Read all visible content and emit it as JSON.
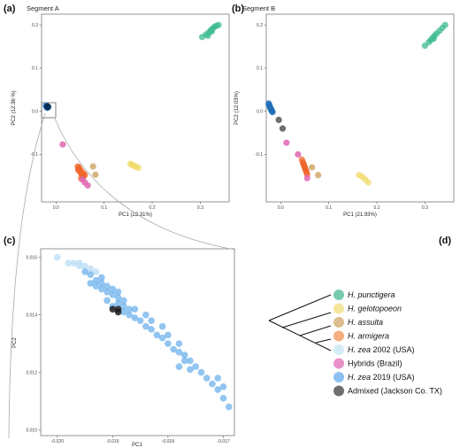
{
  "panels": {
    "a": {
      "letter": "(a)",
      "title": "Segment A",
      "xlabel": "PC1 (22.31%)",
      "ylabel": "PC2 (12.36 %)"
    },
    "b": {
      "letter": "(b)",
      "title": "Segment B",
      "xlabel": "PC1 (21.93%)",
      "ylabel": "PC2 (12.03%)"
    },
    "c": {
      "letter": "(c)",
      "xlabel": "PC1",
      "ylabel": "PC2"
    },
    "d": {
      "letter": "(d)"
    }
  },
  "legend": [
    {
      "italic": "H. punctigera",
      "plain": "",
      "color": "#5fc3a0"
    },
    {
      "italic": "H. gelotopoeon",
      "plain": "",
      "color": "#f2e38c"
    },
    {
      "italic": "H. assulta",
      "plain": "",
      "color": "#d6b27a"
    },
    {
      "italic": "H. armigera",
      "plain": "",
      "color": "#f6a06a"
    },
    {
      "italic": "H. zea",
      "plain": " 2002 (USA)",
      "color": "#cde8f7"
    },
    {
      "italic": "",
      "plain": "Hybrids (Brazil)",
      "color": "#e37fbf"
    },
    {
      "italic": "H. zea",
      "plain": " 2019 (USA)",
      "color": "#78b5ee"
    },
    {
      "italic": "",
      "plain": "Admixed (Jackson Co. TX)",
      "color": "#555555"
    }
  ],
  "chart_data": [
    {
      "panel": "a",
      "type": "scatter",
      "title": "Segment A",
      "xlabel": "PC1 (22.31%)",
      "ylabel": "PC2 (12.36 %)",
      "xlim": [
        -0.03,
        0.36
      ],
      "ylim": [
        -0.21,
        0.225
      ],
      "xticks": [
        0.0,
        0.1,
        0.2,
        0.3
      ],
      "xticklabels": [
        "0.0",
        "0.1",
        "0.2",
        "0.3"
      ],
      "yticks": [
        -0.1,
        0.0,
        0.1,
        0.2
      ],
      "yticklabels": [
        "-0.1",
        "0.0",
        "0.1",
        "0.2"
      ],
      "series": [
        {
          "name": "H. punctigera",
          "color": "#3dbb93",
          "alpha": 0.75,
          "points": [
            [
              0.304,
              0.172
            ],
            [
              0.312,
              0.178
            ],
            [
              0.318,
              0.183
            ],
            [
              0.322,
              0.188
            ],
            [
              0.326,
              0.192
            ],
            [
              0.33,
              0.196
            ],
            [
              0.334,
              0.198
            ],
            [
              0.338,
              0.2
            ],
            [
              0.316,
              0.175
            ],
            [
              0.324,
              0.185
            ]
          ]
        },
        {
          "name": "H. gelotopoeon",
          "color": "#f0dc6e",
          "alpha": 0.8,
          "points": [
            [
              0.155,
              -0.122
            ],
            [
              0.16,
              -0.125
            ],
            [
              0.163,
              -0.127
            ],
            [
              0.167,
              -0.129
            ],
            [
              0.171,
              -0.131
            ],
            [
              0.158,
              -0.124
            ]
          ]
        },
        {
          "name": "H. assulta",
          "color": "#cfa86a",
          "alpha": 0.85,
          "points": [
            [
              0.077,
              -0.128
            ],
            [
              0.082,
              -0.147
            ]
          ]
        },
        {
          "name": "H. armigera",
          "color": "#f0652a",
          "alpha": 0.7,
          "points": [
            [
              0.045,
              -0.128
            ],
            [
              0.047,
              -0.133
            ],
            [
              0.049,
              -0.138
            ],
            [
              0.051,
              -0.142
            ],
            [
              0.053,
              -0.146
            ],
            [
              0.055,
              -0.149
            ],
            [
              0.057,
              -0.152
            ],
            [
              0.05,
              -0.135
            ],
            [
              0.054,
              -0.14
            ],
            [
              0.058,
              -0.145
            ],
            [
              0.048,
              -0.13
            ],
            [
              0.056,
              -0.15
            ],
            [
              0.052,
              -0.156
            ],
            [
              0.06,
              -0.148
            ],
            [
              0.046,
              -0.136
            ]
          ]
        },
        {
          "name": "Hybrids (Brazil)",
          "color": "#e066b0",
          "alpha": 0.85,
          "points": [
            [
              0.014,
              -0.077
            ],
            [
              0.055,
              -0.158
            ],
            [
              0.06,
              -0.165
            ],
            [
              0.066,
              -0.172
            ]
          ]
        },
        {
          "name": "H. zea 2019 (USA)",
          "color": "#1f6fb8",
          "alpha": 0.8,
          "points": [
            [
              -0.02,
              0.013
            ],
            [
              -0.018,
              0.012
            ],
            [
              -0.017,
              0.011
            ],
            [
              -0.019,
              0.009
            ],
            [
              -0.016,
              0.01
            ],
            [
              -0.018,
              0.008
            ],
            [
              -0.021,
              0.012
            ]
          ]
        },
        {
          "name": "Admixed (Jackson Co. TX)",
          "color": "#0b2e52",
          "alpha": 0.9,
          "points": [
            [
              -0.018,
              0.011
            ],
            [
              -0.017,
              0.01
            ]
          ]
        }
      ]
    },
    {
      "panel": "b",
      "type": "scatter",
      "title": "Segment B",
      "xlabel": "PC1 (21.93%)",
      "ylabel": "PC2 (12.03%)",
      "xlim": [
        -0.03,
        0.36
      ],
      "ylim": [
        -0.21,
        0.225
      ],
      "xticks": [
        0.0,
        0.1,
        0.2,
        0.3
      ],
      "xticklabels": [
        "0.0",
        "0.1",
        "0.2",
        "0.3"
      ],
      "yticks": [
        -0.1,
        0.0,
        0.1,
        0.2
      ],
      "yticklabels": [
        "-0.1",
        "0.0",
        "0.1",
        "0.2"
      ],
      "series": [
        {
          "name": "H. punctigera",
          "color": "#3dbb93",
          "alpha": 0.75,
          "points": [
            [
              0.3,
              0.152
            ],
            [
              0.308,
              0.16
            ],
            [
              0.312,
              0.165
            ],
            [
              0.316,
              0.17
            ],
            [
              0.32,
              0.175
            ],
            [
              0.324,
              0.18
            ],
            [
              0.33,
              0.186
            ],
            [
              0.336,
              0.193
            ],
            [
              0.342,
              0.2
            ],
            [
              0.318,
              0.168
            ]
          ]
        },
        {
          "name": "H. gelotopoeon",
          "color": "#f0dc6e",
          "alpha": 0.8,
          "points": [
            [
              0.163,
              -0.148
            ],
            [
              0.17,
              -0.152
            ],
            [
              0.176,
              -0.158
            ],
            [
              0.182,
              -0.165
            ]
          ]
        },
        {
          "name": "H. assulta",
          "color": "#cfa86a",
          "alpha": 0.85,
          "points": [
            [
              0.065,
              -0.13
            ],
            [
              0.078,
              -0.148
            ]
          ]
        },
        {
          "name": "H. armigera",
          "color": "#f0652a",
          "alpha": 0.7,
          "points": [
            [
              0.044,
              -0.112
            ],
            [
              0.046,
              -0.118
            ],
            [
              0.048,
              -0.124
            ],
            [
              0.05,
              -0.13
            ],
            [
              0.052,
              -0.136
            ],
            [
              0.054,
              -0.142
            ],
            [
              0.047,
              -0.121
            ],
            [
              0.051,
              -0.133
            ],
            [
              0.053,
              -0.139
            ],
            [
              0.049,
              -0.127
            ],
            [
              0.055,
              -0.146
            ]
          ]
        },
        {
          "name": "Hybrids (Brazil)",
          "color": "#e066b0",
          "alpha": 0.85,
          "points": [
            [
              0.012,
              -0.073
            ],
            [
              0.036,
              -0.1
            ],
            [
              0.055,
              -0.155
            ]
          ]
        },
        {
          "name": "H. zea 2019 (USA)",
          "color": "#1f6fb8",
          "alpha": 0.8,
          "points": [
            [
              -0.025,
              0.018
            ],
            [
              -0.024,
              0.015
            ],
            [
              -0.023,
              0.012
            ],
            [
              -0.022,
              0.009
            ],
            [
              -0.021,
              0.006
            ],
            [
              -0.02,
              0.004
            ],
            [
              -0.019,
              0.002
            ],
            [
              -0.018,
              0.0
            ],
            [
              -0.017,
              -0.002
            ]
          ]
        },
        {
          "name": "Admixed (Jackson Co. TX)",
          "color": "#555555",
          "alpha": 0.85,
          "points": [
            [
              -0.004,
              -0.02
            ],
            [
              0.004,
              -0.04
            ]
          ]
        }
      ]
    },
    {
      "panel": "c",
      "type": "scatter",
      "xlabel": "PC1",
      "ylabel": "PC2",
      "xlim": [
        -0.0203,
        -0.0168
      ],
      "ylim": [
        0.0098,
        0.0163
      ],
      "xticks": [
        -0.02,
        -0.019,
        -0.018,
        -0.017
      ],
      "xticklabels": [
        "-0.020",
        "-0.019",
        "-0.018",
        "-0.017"
      ],
      "yticks": [
        0.01,
        0.012,
        0.014,
        0.016
      ],
      "yticklabels": [
        "0.010",
        "0.012",
        "0.014",
        "0.016"
      ],
      "series": [
        {
          "name": "H. zea 2002 (USA)",
          "color": "#bfe0f6",
          "alpha": 0.85,
          "points": [
            [
              -0.02,
              0.016
            ],
            [
              -0.0198,
              0.0158
            ],
            [
              -0.0197,
              0.0158
            ],
            [
              -0.0196,
              0.0158
            ],
            [
              -0.0196,
              0.0157
            ],
            [
              -0.0194,
              0.0156
            ],
            [
              -0.0195,
              0.0157
            ],
            [
              -0.0193,
              0.0155
            ]
          ]
        },
        {
          "name": "H. zea 2019 (USA)",
          "color": "#4a9fe8",
          "alpha": 0.6,
          "points": [
            [
              -0.0195,
              0.0155
            ],
            [
              -0.0194,
              0.0154
            ],
            [
              -0.0193,
              0.0152
            ],
            [
              -0.0192,
              0.0151
            ],
            [
              -0.0191,
              0.015
            ],
            [
              -0.0191,
              0.0148
            ],
            [
              -0.019,
              0.0147
            ],
            [
              -0.0192,
              0.0149
            ],
            [
              -0.0193,
              0.015
            ],
            [
              -0.0194,
              0.0151
            ],
            [
              -0.0192,
              0.0153
            ],
            [
              -0.019,
              0.0149
            ],
            [
              -0.0189,
              0.0148
            ],
            [
              -0.0189,
              0.0146
            ],
            [
              -0.0188,
              0.0145
            ],
            [
              -0.0188,
              0.0143
            ],
            [
              -0.0187,
              0.0142
            ],
            [
              -0.0187,
              0.014
            ],
            [
              -0.0186,
              0.0139
            ],
            [
              -0.0185,
              0.0138
            ],
            [
              -0.0184,
              0.0136
            ],
            [
              -0.0183,
              0.0135
            ],
            [
              -0.0182,
              0.0133
            ],
            [
              -0.0181,
              0.0132
            ],
            [
              -0.018,
              0.013
            ],
            [
              -0.0179,
              0.0128
            ],
            [
              -0.0178,
              0.0127
            ],
            [
              -0.0177,
              0.0126
            ],
            [
              -0.0176,
              0.0124
            ],
            [
              -0.0175,
              0.0122
            ],
            [
              -0.0174,
              0.012
            ],
            [
              -0.0173,
              0.0118
            ],
            [
              -0.0172,
              0.0116
            ],
            [
              -0.0171,
              0.0114
            ],
            [
              -0.017,
              0.0111
            ],
            [
              -0.0169,
              0.0108
            ],
            [
              -0.0186,
              0.0142
            ],
            [
              -0.0184,
              0.014
            ],
            [
              -0.0183,
              0.0138
            ],
            [
              -0.0181,
              0.0136
            ],
            [
              -0.018,
              0.0133
            ],
            [
              -0.0178,
              0.013
            ],
            [
              -0.0177,
              0.0124
            ],
            [
              -0.0176,
              0.0121
            ],
            [
              -0.0178,
              0.0122
            ],
            [
              -0.0171,
              0.0118
            ],
            [
              -0.017,
              0.0115
            ],
            [
              -0.0189,
              0.0144
            ],
            [
              -0.0191,
              0.0145
            ],
            [
              -0.019,
              0.0143
            ],
            [
              -0.0188,
              0.0141
            ]
          ]
        },
        {
          "name": "Admixed (Jackson Co. TX)",
          "color": "#1b1b1b",
          "alpha": 0.85,
          "points": [
            [
              -0.019,
              0.0142
            ],
            [
              -0.0189,
              0.0141
            ],
            [
              -0.0189,
              0.0142
            ]
          ]
        }
      ]
    }
  ]
}
